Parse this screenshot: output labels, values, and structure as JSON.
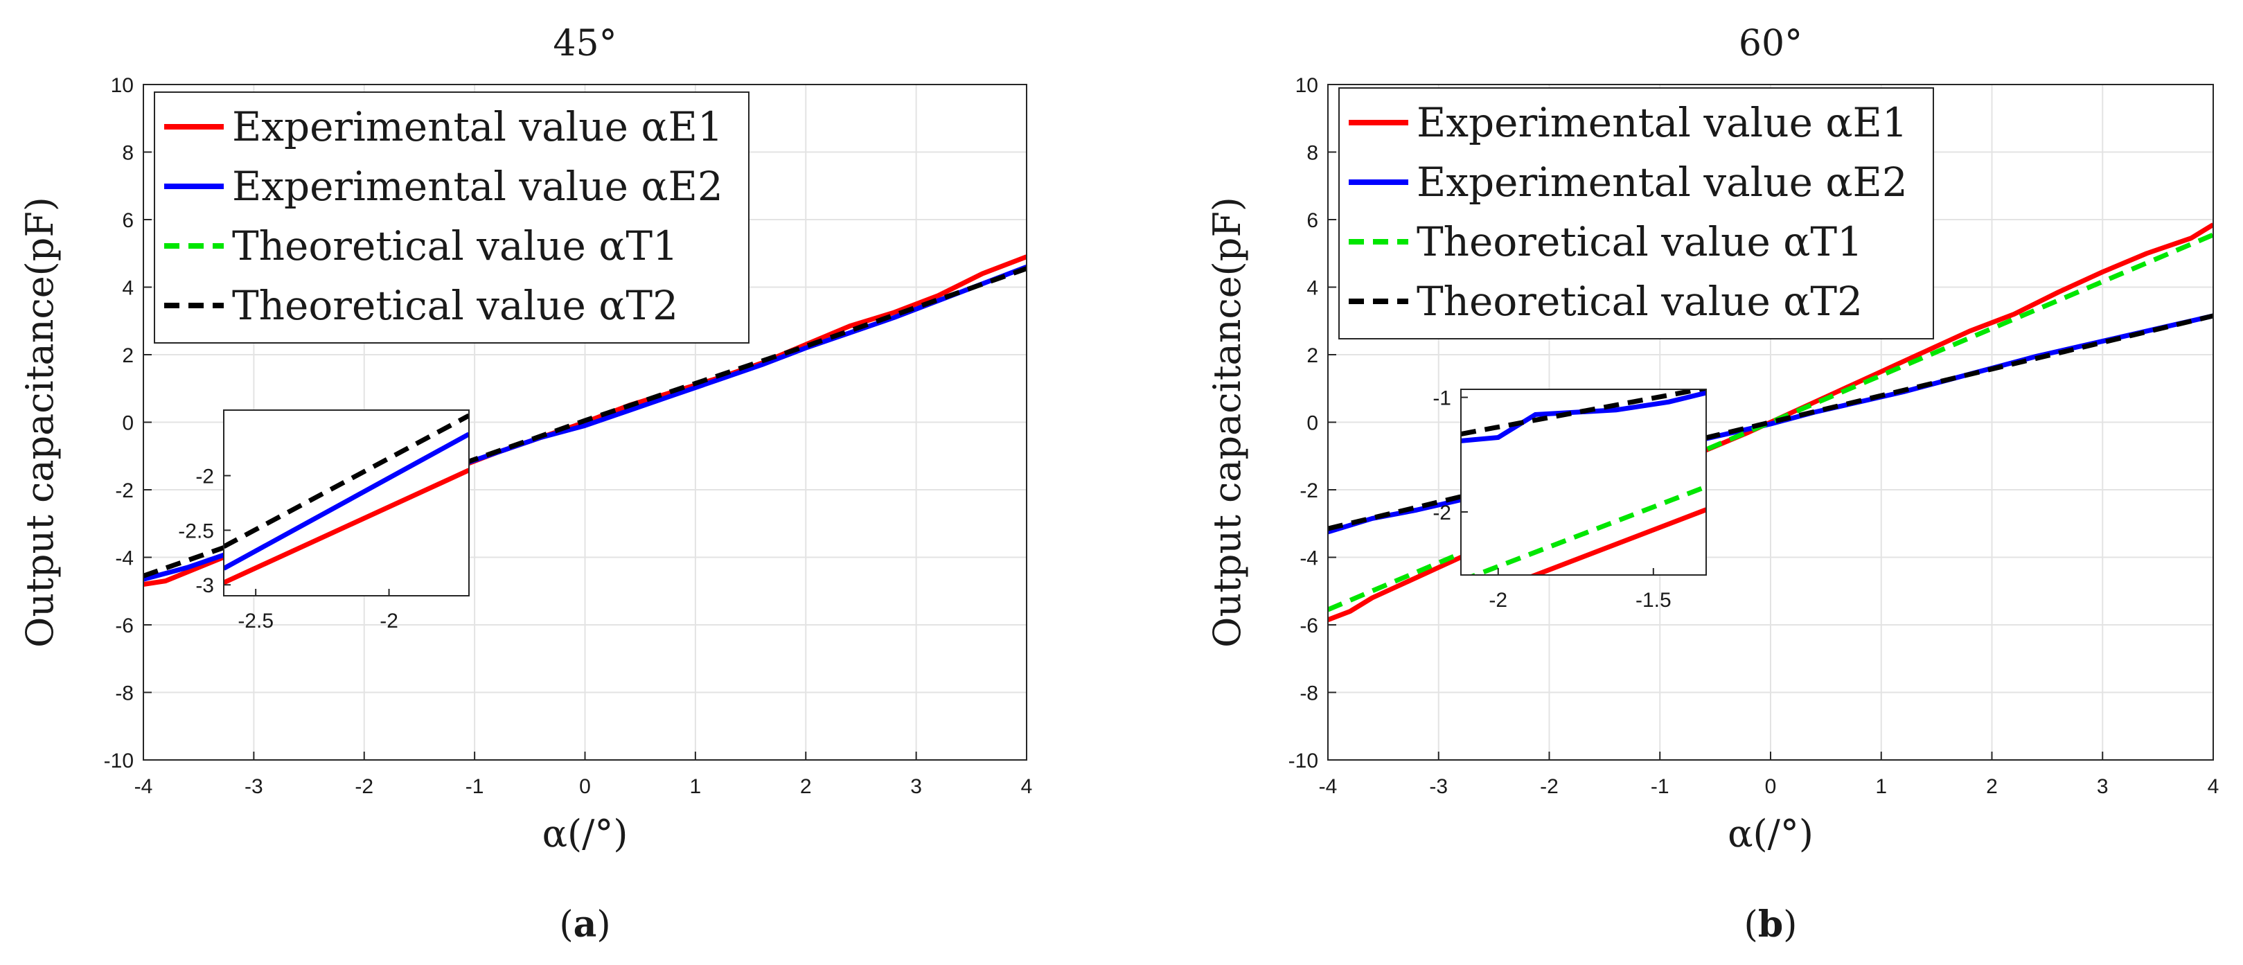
{
  "chart_data": [
    {
      "type": "line",
      "title": "45°",
      "xlabel": "α(/°)",
      "ylabel": "Output capacitance(pF)",
      "xlim": [
        -4,
        4
      ],
      "ylim": [
        -10,
        10
      ],
      "x_ticks": [
        -4,
        -3,
        -2,
        -1,
        0,
        1,
        2,
        3,
        4
      ],
      "y_ticks": [
        -10,
        -8,
        -6,
        -4,
        -2,
        0,
        2,
        4,
        6,
        8,
        10
      ],
      "grid": true,
      "legend_position": "top-left",
      "caption": {
        "open": "(",
        "letter": "a",
        "close": ")"
      },
      "series": [
        {
          "name": "Experimental value αE1",
          "color": "#ff0000",
          "dash": "solid",
          "x": [
            -4,
            -3.8,
            -3.5,
            -3.2,
            -2.8,
            -2.4,
            -2.0,
            -1.6,
            -1.2,
            -0.8,
            -0.4,
            0,
            0.4,
            0.8,
            1.2,
            1.6,
            2.0,
            2.4,
            2.8,
            3.2,
            3.6,
            4
          ],
          "y": [
            -4.8,
            -4.7,
            -4.3,
            -3.9,
            -3.4,
            -2.8,
            -2.3,
            -1.9,
            -1.4,
            -0.9,
            -0.45,
            0,
            0.5,
            0.9,
            1.3,
            1.75,
            2.3,
            2.85,
            3.25,
            3.75,
            4.4,
            4.9
          ]
        },
        {
          "name": "Experimental value αE2",
          "color": "#0000ff",
          "dash": "solid",
          "x": [
            -4,
            -3.6,
            -3.2,
            -2.8,
            -2.4,
            -2.0,
            -1.6,
            -1.2,
            -0.8,
            -0.4,
            0,
            0.4,
            0.8,
            1.2,
            1.6,
            2.0,
            2.4,
            2.8,
            3.2,
            3.6,
            4
          ],
          "y": [
            -4.65,
            -4.3,
            -3.85,
            -3.35,
            -2.85,
            -2.35,
            -1.85,
            -1.35,
            -0.9,
            -0.45,
            -0.1,
            0.35,
            0.8,
            1.25,
            1.7,
            2.2,
            2.65,
            3.1,
            3.6,
            4.1,
            4.6
          ]
        },
        {
          "name": "Theoretical value αT1",
          "color": "#00e600",
          "dash": "dashed",
          "x": [],
          "y": []
        },
        {
          "name": "Theoretical value αT2",
          "color": "#000000",
          "dash": "dashed",
          "x": [
            -4,
            -3,
            -2,
            -1,
            0,
            1,
            2,
            3,
            4
          ],
          "y": [
            -4.55,
            -3.4,
            -2.25,
            -1.1,
            0.05,
            1.15,
            2.25,
            3.4,
            4.55
          ]
        }
      ],
      "inset": {
        "xlim": [
          -2.62,
          -1.7
        ],
        "ylim": [
          -3.1,
          -1.4
        ],
        "x_ticks": [
          -2.5,
          -2
        ],
        "y_ticks": [
          -3,
          -2.5,
          -2
        ],
        "series": [
          {
            "x": [
              -2.62,
              -1.7
            ],
            "y": [
              -2.98,
              -1.95
            ]
          },
          {
            "x": [
              -2.62,
              -1.7
            ],
            "y": [
              -2.85,
              -1.62
            ]
          },
          {
            "x": [],
            "y": []
          },
          {
            "x": [
              -2.62,
              -1.7
            ],
            "y": [
              -2.65,
              -1.45
            ]
          }
        ]
      }
    },
    {
      "type": "line",
      "title": "60°",
      "xlabel": "α(/°)",
      "ylabel": "Output capacitance(pF)",
      "xlim": [
        -4,
        4
      ],
      "ylim": [
        -10,
        10
      ],
      "x_ticks": [
        -4,
        -3,
        -2,
        -1,
        0,
        1,
        2,
        3,
        4
      ],
      "y_ticks": [
        -10,
        -8,
        -6,
        -4,
        -2,
        0,
        2,
        4,
        6,
        8,
        10
      ],
      "grid": true,
      "legend_position": "top-left",
      "caption": {
        "open": "(",
        "letter": "b",
        "close": ")"
      },
      "series": [
        {
          "name": "Experimental value αE1",
          "color": "#ff0000",
          "dash": "solid",
          "x": [
            -4,
            -3.8,
            -3.6,
            -3.4,
            -3.0,
            -2.6,
            -2.2,
            -1.8,
            -1.4,
            -1.0,
            -0.6,
            -0.2,
            0,
            0.2,
            0.6,
            1.0,
            1.4,
            1.8,
            2.2,
            2.6,
            3.0,
            3.4,
            3.8,
            4
          ],
          "y": [
            -5.85,
            -5.6,
            -5.2,
            -4.9,
            -4.3,
            -3.7,
            -3.1,
            -2.6,
            -2.0,
            -1.4,
            -0.85,
            -0.3,
            0,
            0.3,
            0.9,
            1.5,
            2.1,
            2.7,
            3.2,
            3.85,
            4.45,
            5.0,
            5.45,
            5.85
          ]
        },
        {
          "name": "Experimental value αE2",
          "color": "#0000ff",
          "dash": "solid",
          "x": [
            -4,
            -3.6,
            -3.2,
            -2.8,
            -2.4,
            -2.0,
            -1.6,
            -1.2,
            -0.8,
            -0.4,
            0,
            0.4,
            0.8,
            1.2,
            1.6,
            2.0,
            2.4,
            2.8,
            3.2,
            3.6,
            4
          ],
          "y": [
            -3.25,
            -2.85,
            -2.6,
            -2.3,
            -1.95,
            -1.6,
            -1.3,
            -0.95,
            -0.65,
            -0.35,
            -0.05,
            0.3,
            0.6,
            0.9,
            1.25,
            1.6,
            1.95,
            2.25,
            2.55,
            2.85,
            3.15
          ]
        },
        {
          "name": "Theoretical value αT1",
          "color": "#00e600",
          "dash": "dashed",
          "x": [
            -4,
            4
          ],
          "y": [
            -5.55,
            5.55
          ]
        },
        {
          "name": "Theoretical value αT2",
          "color": "#000000",
          "dash": "dashed",
          "x": [
            -4,
            4
          ],
          "y": [
            -3.15,
            3.15
          ]
        }
      ],
      "inset": {
        "xlim": [
          -2.12,
          -1.33
        ],
        "ylim": [
          -2.55,
          -0.93
        ],
        "x_ticks": [
          -2,
          -1.5
        ],
        "y_ticks": [
          -2,
          -1
        ],
        "series": [
          {
            "x": [
              -2.12,
              -1.33
            ],
            "y": [
              -2.8,
              -1.98
            ]
          },
          {
            "x": [
              -2.12,
              -2.0,
              -1.88,
              -1.62,
              -1.45,
              -1.33
            ],
            "y": [
              -1.38,
              -1.35,
              -1.15,
              -1.11,
              -1.04,
              -0.96
            ]
          },
          {
            "x": [
              -2.12,
              -1.33
            ],
            "y": [
              -2.6,
              -1.78
            ]
          },
          {
            "x": [
              -2.12,
              -1.33
            ],
            "y": [
              -1.32,
              -0.92
            ]
          }
        ]
      }
    }
  ]
}
